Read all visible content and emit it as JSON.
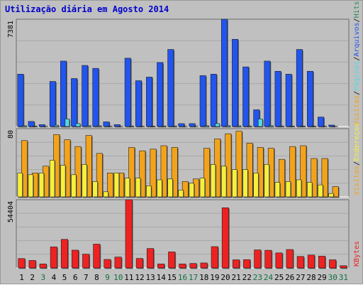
{
  "chart_data": {
    "title": "Utilização diária em Agosto 2014",
    "type": "bar",
    "categories": [
      "1",
      "2",
      "3",
      "4",
      "5",
      "6",
      "7",
      "8",
      "9",
      "10",
      "11",
      "12",
      "13",
      "14",
      "15",
      "16",
      "17",
      "18",
      "19",
      "20",
      "21",
      "22",
      "23",
      "24",
      "25",
      "26",
      "27",
      "28",
      "29",
      "30",
      "31"
    ],
    "weekend_days": [
      "3",
      "9",
      "10",
      "16",
      "17",
      "23",
      "24",
      "30",
      "31"
    ],
    "colors": {
      "title": "#0000cc",
      "weekday_label": "#000000",
      "weekend_label": "#107040",
      "visitas": "#f3a31a",
      "paginas": "#55d8e6",
      "arquivos": "#2255ee",
      "enderecos": "#f6ef3c",
      "hits": "#2c8a5a",
      "kbytes": "#ee2222"
    },
    "panels": [
      {
        "name": "top",
        "max_label": "7381",
        "ymax": 7381,
        "legend": [
          {
            "label": "Visitas",
            "color": "#f3a31a"
          },
          {
            "label": "/",
            "color": "#000000"
          },
          {
            "label": "Páginas",
            "color": "#55d8e6"
          },
          {
            "label": "/",
            "color": "#000000"
          },
          {
            "label": "Arquivos",
            "color": "#2255ee"
          },
          {
            "label": "/",
            "color": "#000000"
          },
          {
            "label": "Hits",
            "color": "#2c8a5a"
          }
        ],
        "series": [
          {
            "name": "Arquivos",
            "color": "#2255ee",
            "values": [
              3600,
              350,
              130,
              3100,
              4500,
              3300,
              4200,
              4000,
              320,
              130,
              4700,
              3150,
              3400,
              4400,
              5300,
              200,
              200,
              3500,
              3600,
              7381,
              6000,
              4100,
              1150,
              4500,
              3800,
              3600,
              5300,
              3800,
              650,
              100,
              0
            ]
          },
          {
            "name": "Páginas",
            "color": "#55d8e6",
            "values": [
              60,
              30,
              10,
              90,
              520,
              200,
              60,
              50,
              20,
              10,
              40,
              20,
              30,
              40,
              40,
              10,
              10,
              60,
              200,
              60,
              50,
              40,
              520,
              60,
              40,
              30,
              30,
              30,
              20,
              10,
              0
            ]
          }
        ]
      },
      {
        "name": "middle",
        "max_label": "80",
        "ymax": 80,
        "legend": [
          {
            "label": "Visitas",
            "color": "#f3a31a"
          },
          {
            "label": "/",
            "color": "#000000"
          },
          {
            "label": "Endereços",
            "color": "#f6ef3c"
          }
        ],
        "series": [
          {
            "name": "Visitas",
            "color": "#f3a31a",
            "values": [
              66,
              28,
              36,
              73,
              67,
              59,
              72,
              51,
              28,
              28,
              58,
              54,
              56,
              60,
              58,
              18,
              21,
              57,
              68,
              74,
              77,
              63,
              58,
              57,
              44,
              59,
              60,
              45,
              45,
              12,
              0
            ]
          },
          {
            "name": "Endereços",
            "color": "#f6ef3c",
            "values": [
              28,
              26,
              28,
              43,
              37,
              26,
              38,
              18,
              6,
              28,
              22,
              22,
              13,
              20,
              21,
              8,
              16,
              22,
              38,
              36,
              32,
              32,
              28,
              38,
              17,
              18,
              20,
              17,
              14,
              4,
              0
            ]
          }
        ]
      },
      {
        "name": "bottom",
        "max_label": "54404",
        "ymax": 54404,
        "legend": [
          {
            "label": "KBytes",
            "color": "#ee2222"
          }
        ],
        "series": [
          {
            "name": "KBytes",
            "color": "#ee2222",
            "values": [
              7500,
              6000,
              3200,
              16800,
              22800,
              14200,
              11000,
              19000,
              6800,
              8700,
              54404,
              7600,
              15500,
              3200,
              12800,
              3200,
              3600,
              4000,
              17000,
              48000,
              6500,
              6600,
              14400,
              14100,
              12000,
              14700,
              9200,
              10300,
              9400,
              6500,
              1800
            ]
          }
        ]
      }
    ]
  }
}
